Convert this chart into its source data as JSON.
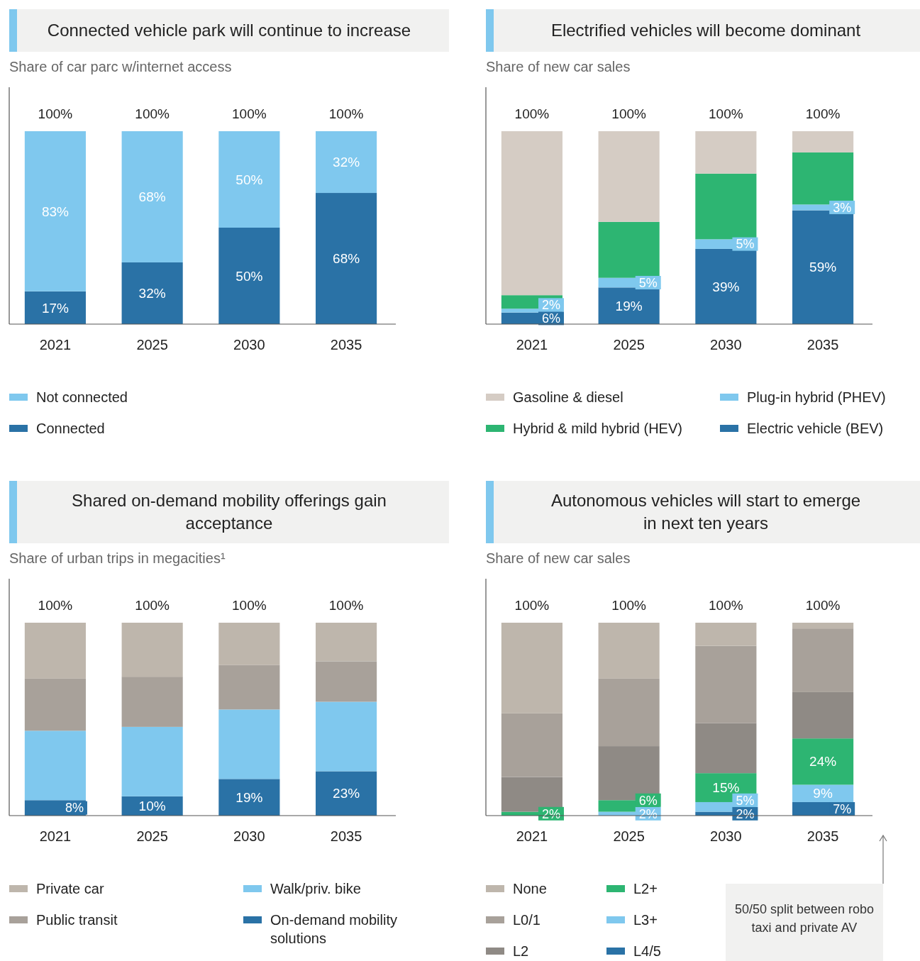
{
  "chart_data": [
    {
      "type": "bar",
      "stacked": true,
      "title": "Connected vehicle park will continue to increase",
      "subtitle": "Share of car parc w/internet access",
      "categories": [
        "2021",
        "2025",
        "2030",
        "2035"
      ],
      "ylim": [
        0,
        100
      ],
      "tick_labels": "x",
      "legend": "bottom",
      "totals": [
        "100%",
        "100%",
        "100%",
        "100%"
      ],
      "series": [
        {
          "name": "Connected",
          "color": "#2a72a6",
          "values": [
            17,
            32,
            50,
            68
          ],
          "value_labels": [
            "17%",
            "32%",
            "50%",
            "68%"
          ]
        },
        {
          "name": "Not connected",
          "color": "#7fc8ee",
          "values": [
            83,
            68,
            50,
            32
          ],
          "value_labels": [
            "83%",
            "68%",
            "50%",
            "32%"
          ]
        }
      ]
    },
    {
      "type": "bar",
      "stacked": true,
      "title": "Electrified vehicles will become dominant",
      "subtitle": "Share of new car sales",
      "categories": [
        "2021",
        "2025",
        "2030",
        "2035"
      ],
      "ylim": [
        0,
        100
      ],
      "tick_labels": "x",
      "legend": "bottom",
      "totals": [
        "100%",
        "100%",
        "100%",
        "100%"
      ],
      "series": [
        {
          "name": "Electric vehicle (BEV)",
          "color": "#2a72a6",
          "values": [
            6,
            19,
            39,
            59
          ],
          "value_labels": [
            "6%",
            "19%",
            "39%",
            "59%"
          ]
        },
        {
          "name": "Plug-in hybrid (PHEV)",
          "color": "#7fc8ee",
          "values": [
            2,
            5,
            5,
            3
          ],
          "value_labels": [
            "2%",
            "5%",
            "5%",
            "3%"
          ]
        },
        {
          "name": "Hybrid & mild hybrid (HEV)",
          "color": "#2db572",
          "values": [
            7,
            29,
            34,
            27
          ],
          "value_labels": [
            null,
            null,
            null,
            null
          ]
        },
        {
          "name": "Gasoline & diesel",
          "color": "#d5ccc4",
          "values": [
            85,
            47,
            22,
            11
          ],
          "value_labels": [
            null,
            null,
            null,
            null
          ]
        }
      ]
    },
    {
      "type": "bar",
      "stacked": true,
      "title": "Shared on-demand mobility offerings gain acceptance",
      "subtitle": "Share of urban trips in megacities¹",
      "categories": [
        "2021",
        "2025",
        "2030",
        "2035"
      ],
      "ylim": [
        0,
        100
      ],
      "tick_labels": "x",
      "legend": "bottom",
      "totals": [
        "100%",
        "100%",
        "100%",
        "100%"
      ],
      "series": [
        {
          "name": "On-demand mobility solutions",
          "color": "#2a72a6",
          "values": [
            8,
            10,
            19,
            23
          ],
          "value_labels": [
            "8%",
            "10%",
            "19%",
            "23%"
          ]
        },
        {
          "name": "Walk/priv. bike",
          "color": "#7fc8ee",
          "values": [
            36,
            36,
            36,
            36
          ],
          "value_labels": [
            null,
            null,
            null,
            null
          ]
        },
        {
          "name": "Public transit",
          "color": "#a8a19a",
          "values": [
            27,
            26,
            23,
            21
          ],
          "value_labels": [
            null,
            null,
            null,
            null
          ]
        },
        {
          "name": "Private  car",
          "color": "#beb6ac",
          "values": [
            29,
            28,
            22,
            20
          ],
          "value_labels": [
            null,
            null,
            null,
            null
          ]
        }
      ]
    },
    {
      "type": "bar",
      "stacked": true,
      "title": "Autonomous vehicles will start to emerge in next ten years",
      "subtitle": "Share of new car sales",
      "categories": [
        "2021",
        "2025",
        "2030",
        "2035"
      ],
      "ylim": [
        0,
        100
      ],
      "tick_labels": "x",
      "legend": "bottom",
      "totals": [
        "100%",
        "100%",
        "100%",
        "100%"
      ],
      "annotations": [
        "50/50 split between robo taxi and private AV"
      ],
      "series": [
        {
          "name": "L4/5",
          "color": "#2a72a6",
          "values": [
            0,
            0,
            2,
            7
          ],
          "value_labels": [
            null,
            null,
            "2%",
            "7%"
          ]
        },
        {
          "name": "L3+",
          "color": "#7fc8ee",
          "values": [
            0,
            2,
            5,
            9
          ],
          "value_labels": [
            null,
            "2%",
            "5%",
            "9%"
          ]
        },
        {
          "name": "L2+",
          "color": "#2db572",
          "values": [
            2,
            6,
            15,
            24
          ],
          "value_labels": [
            "2%",
            "6%",
            "15%",
            "24%"
          ]
        },
        {
          "name": "L2",
          "color": "#8f8a85",
          "values": [
            18,
            28,
            26,
            24
          ],
          "value_labels": [
            null,
            null,
            null,
            null
          ]
        },
        {
          "name": "L0/1",
          "color": "#a8a19a",
          "values": [
            33,
            35,
            40,
            33
          ],
          "value_labels": [
            null,
            null,
            null,
            null
          ]
        },
        {
          "name": "None",
          "color": "#beb6ac",
          "values": [
            47,
            29,
            12,
            3
          ],
          "value_labels": [
            null,
            null,
            null,
            null
          ]
        }
      ]
    }
  ]
}
